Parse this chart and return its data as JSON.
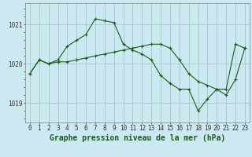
{
  "title": "Graphe pression niveau de la mer (hPa)",
  "background_color": "#cce8f0",
  "grid_color": "#a8cccc",
  "line_color": "#1a5c1a",
  "marker_color": "#1a5c1a",
  "x_values": [
    0,
    1,
    2,
    3,
    4,
    5,
    6,
    7,
    8,
    9,
    10,
    11,
    12,
    13,
    14,
    15,
    16,
    17,
    18,
    19,
    20,
    21,
    22,
    23
  ],
  "series1": [
    1019.75,
    1020.1,
    1020.0,
    1020.1,
    1020.45,
    1020.6,
    1020.75,
    1021.15,
    1021.1,
    1021.05,
    1020.5,
    1020.35,
    1020.25,
    1020.1,
    1019.7,
    1019.5,
    1019.35,
    1019.35,
    1018.8,
    1019.1,
    1019.35,
    1019.35,
    1020.5,
    1020.4
  ],
  "series2": [
    1019.75,
    1020.1,
    1020.0,
    1020.05,
    1020.05,
    1020.1,
    1020.15,
    1020.2,
    1020.25,
    1020.3,
    1020.35,
    1020.4,
    1020.45,
    1020.5,
    1020.5,
    1020.4,
    1020.1,
    1019.75,
    1019.55,
    1019.45,
    1019.35,
    1019.2,
    1019.6,
    1020.4
  ],
  "ylim": [
    1018.5,
    1021.55
  ],
  "yticks": [
    1019,
    1020,
    1021
  ],
  "xlim": [
    -0.5,
    23.5
  ],
  "tick_fontsize": 5.5,
  "title_fontsize": 7
}
